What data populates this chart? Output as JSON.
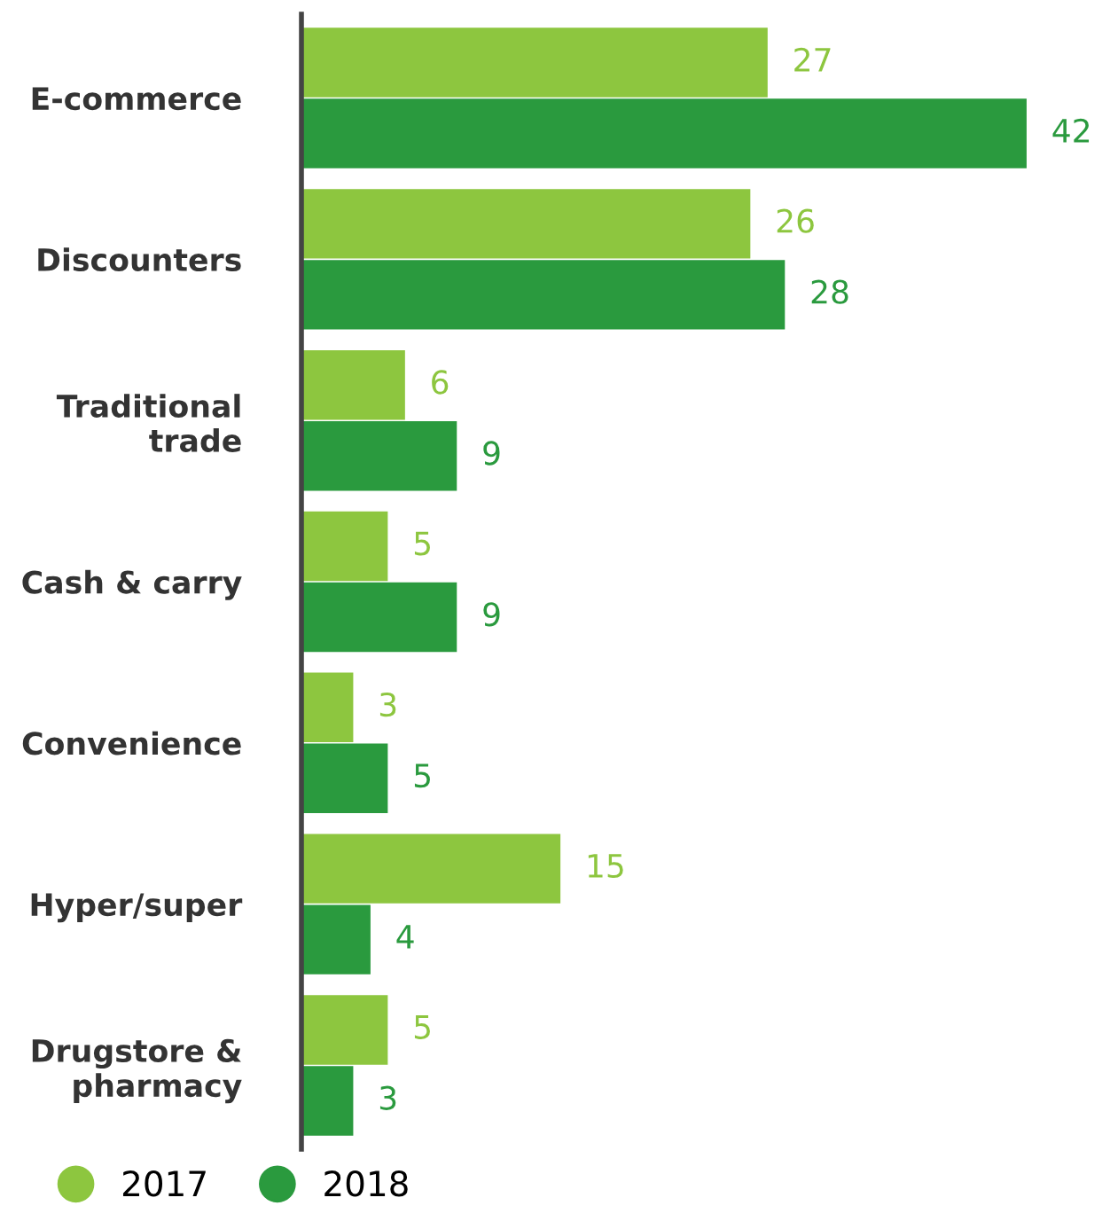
{
  "chart_data": {
    "type": "bar",
    "orientation": "horizontal",
    "categories": [
      "E-commerce",
      "Discounters",
      "Traditional\ntrade",
      "Cash & carry",
      "Convenience",
      "Hyper/super",
      "Drugstore &\npharmacy"
    ],
    "series": [
      {
        "name": "2017",
        "color": "#8dc63f",
        "values": [
          27,
          26,
          6,
          5,
          3,
          15,
          5
        ]
      },
      {
        "name": "2018",
        "color": "#2a9a3e",
        "values": [
          42,
          28,
          9,
          9,
          5,
          4,
          3
        ]
      }
    ],
    "data_labels": true,
    "legend": "bottom left",
    "grid": false
  }
}
